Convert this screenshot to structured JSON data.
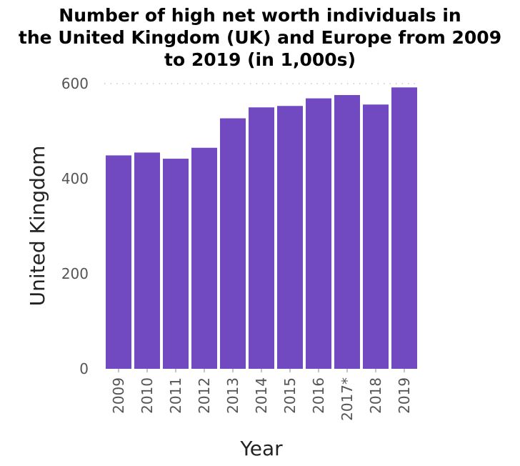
{
  "chart_data": {
    "type": "bar",
    "title_lines": [
      "Number of high net worth individuals in",
      "the United Kingdom (UK) and Europe from 2009",
      "to 2019 (in 1,000s)"
    ],
    "xlabel": "Year",
    "ylabel": "United Kingdom",
    "categories": [
      "2009",
      "2010",
      "2011",
      "2012",
      "2013",
      "2014",
      "2015",
      "2016",
      "2017*",
      "2018",
      "2019"
    ],
    "values": [
      449,
      455,
      442,
      465,
      527,
      550,
      553,
      569,
      576,
      556,
      592
    ],
    "ylim": [
      0,
      600
    ],
    "yticks": [
      "0",
      "200",
      "400",
      "600"
    ],
    "grid": "dotted line at 600 only",
    "bar_color": "#7149c1",
    "legend": "none"
  }
}
